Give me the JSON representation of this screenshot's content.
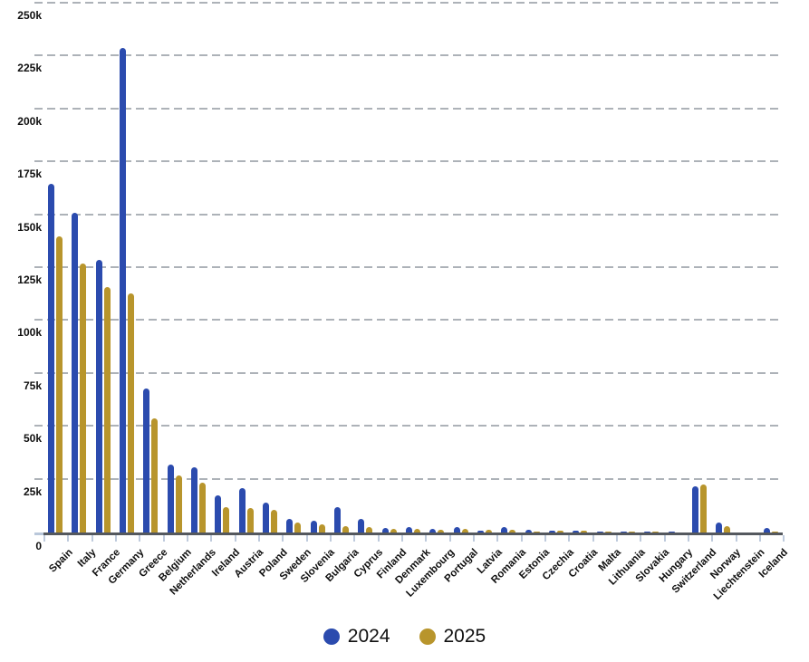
{
  "chart_data": {
    "type": "bar",
    "title": "",
    "xlabel": "",
    "ylabel": "",
    "categories": [
      "Spain",
      "Italy",
      "France",
      "Germany",
      "Greece",
      "Belgium",
      "Netherlands",
      "Ireland",
      "Austria",
      "Poland",
      "Sweden",
      "Slovenia",
      "Bulgaria",
      "Cyprus",
      "Finland",
      "Denmark",
      "Luxembourg",
      "Portugal",
      "Latvia",
      "Romania",
      "Estonia",
      "Czechia",
      "Croatia",
      "Malta",
      "Lithuania",
      "Slovakia",
      "Hungary",
      "Switzerland",
      "Norway",
      "Liechtenstein",
      "Iceland"
    ],
    "series": [
      {
        "name": "2024",
        "color": "#2b4bae",
        "values": [
          165000,
          151000,
          129000,
          229000,
          68000,
          32000,
          31000,
          17500,
          21000,
          14000,
          6300,
          5500,
          11800,
          6300,
          2000,
          2400,
          1700,
          2400,
          700,
          2400,
          1200,
          900,
          1000,
          400,
          600,
          400,
          300,
          21800,
          4600,
          100,
          2000
        ]
      },
      {
        "name": "2025",
        "color": "#b8952c",
        "values": [
          140000,
          127000,
          116000,
          113000,
          54000,
          27000,
          23500,
          12000,
          11500,
          10500,
          4900,
          4000,
          3000,
          2600,
          1700,
          1900,
          1500,
          1600,
          1300,
          1400,
          600,
          700,
          900,
          400,
          600,
          400,
          100,
          22800,
          3100,
          100,
          300
        ]
      }
    ],
    "ylim": [
      0,
      250000
    ],
    "ytick_step": 25000,
    "ytick_values": [
      0,
      25000,
      50000,
      75000,
      100000,
      125000,
      150000,
      175000,
      200000,
      225000,
      250000
    ],
    "ytick_labels": [
      "0",
      "25k",
      "50k",
      "75k",
      "100k",
      "125k",
      "150k",
      "175k",
      "200k",
      "225k",
      "250k"
    ],
    "grid": {
      "horizontal": true,
      "style": "dashed"
    },
    "legend_position": "bottom"
  },
  "palette": {
    "background": "#ffffff",
    "gridline": "#adb2b8",
    "axis_line": "#54585e",
    "axis_tick": "#bfcbdd",
    "label_text": "#0f0f0f",
    "legend_text": "#111111"
  }
}
